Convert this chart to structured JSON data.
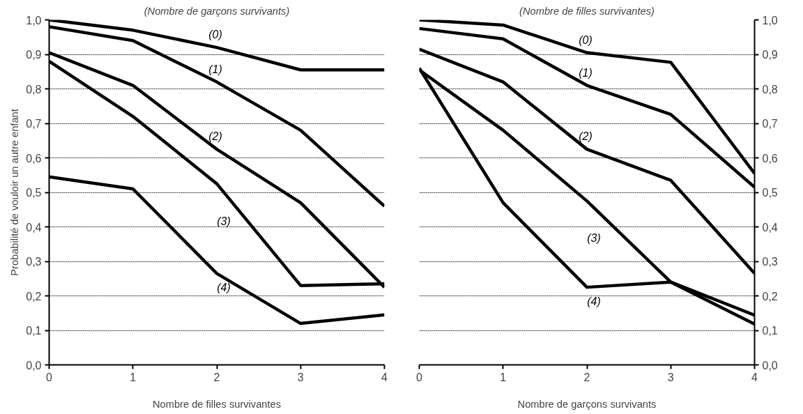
{
  "chart_data": [
    {
      "type": "line",
      "title": "(Nombre de garçons survivants)",
      "xlabel": "Nombre de filles survivantes",
      "ylabel": "Probabilité de vouloir un autre enfant",
      "x": [
        0,
        1,
        2,
        3,
        4
      ],
      "xlim": [
        0,
        4
      ],
      "xticks": [
        0,
        1,
        2,
        3,
        4
      ],
      "ylim": [
        0,
        1
      ],
      "yticks": [
        {
          "value": 0,
          "label": "0,0"
        },
        {
          "value": 0.1,
          "label": "0,1"
        },
        {
          "value": 0.2,
          "label": "0,2"
        },
        {
          "value": 0.3,
          "label": "0,3"
        },
        {
          "value": 0.4,
          "label": "0,4"
        },
        {
          "value": 0.5,
          "label": "0,5"
        },
        {
          "value": 0.6,
          "label": "0,6"
        },
        {
          "value": 0.7,
          "label": "0,7"
        },
        {
          "value": 0.8,
          "label": "0,8"
        },
        {
          "value": 0.9,
          "label": "0,9"
        },
        {
          "value": 1,
          "label": "1,0"
        }
      ],
      "grid": "y",
      "marker": "none",
      "line_style": "solid",
      "series": [
        {
          "name": "(0)",
          "color": "#000000",
          "values": [
            1.0,
            0.97,
            0.92,
            0.855,
            0.855
          ]
        },
        {
          "name": "(1)",
          "color": "#000000",
          "values": [
            0.98,
            0.94,
            0.82,
            0.68,
            0.46
          ]
        },
        {
          "name": "(2)",
          "color": "#000000",
          "values": [
            0.905,
            0.81,
            0.625,
            0.47,
            0.225
          ]
        },
        {
          "name": "(3)",
          "color": "#000000",
          "values": [
            0.88,
            0.72,
            0.525,
            0.23,
            0.235
          ]
        },
        {
          "name": "(4)",
          "color": "#000000",
          "values": [
            0.545,
            0.51,
            0.265,
            0.12,
            0.145
          ]
        }
      ]
    },
    {
      "type": "line",
      "title": "(Nombre de filles survivantes)",
      "xlabel": "Nombre de garçons survivants",
      "x": [
        0,
        1,
        2,
        3,
        4
      ],
      "xlim": [
        0,
        4
      ],
      "xticks": [
        0,
        1,
        2,
        3,
        4
      ],
      "ylim": [
        0,
        1
      ],
      "yticks": [
        {
          "value": 0,
          "label": "0,0"
        },
        {
          "value": 0.1,
          "label": "0,1"
        },
        {
          "value": 0.2,
          "label": "0,2"
        },
        {
          "value": 0.3,
          "label": "0,3"
        },
        {
          "value": 0.4,
          "label": "0,4"
        },
        {
          "value": 0.5,
          "label": "0,5"
        },
        {
          "value": 0.6,
          "label": "0,6"
        },
        {
          "value": 0.7,
          "label": "0,7"
        },
        {
          "value": 0.8,
          "label": "0,8"
        },
        {
          "value": 0.9,
          "label": "0,9"
        },
        {
          "value": 1,
          "label": "1,0"
        }
      ],
      "grid": "y",
      "marker": "none",
      "line_style": "solid",
      "series": [
        {
          "name": "(0)",
          "color": "#000000",
          "values": [
            1.0,
            0.985,
            0.905,
            0.877,
            0.555
          ]
        },
        {
          "name": "(1)",
          "color": "#000000",
          "values": [
            0.975,
            0.945,
            0.81,
            0.726,
            0.515
          ]
        },
        {
          "name": "(2)",
          "color": "#000000",
          "values": [
            0.915,
            0.82,
            0.625,
            0.535,
            0.265
          ]
        },
        {
          "name": "(3)",
          "color": "#000000",
          "values": [
            0.855,
            0.68,
            0.475,
            0.24,
            0.118
          ]
        },
        {
          "name": "(4)",
          "color": "#000000",
          "values": [
            0.86,
            0.47,
            0.225,
            0.24,
            0.144
          ]
        }
      ]
    }
  ]
}
